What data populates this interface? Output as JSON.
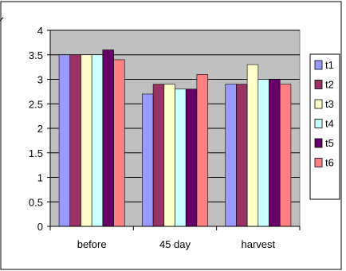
{
  "chart_data": {
    "type": "bar",
    "categories": [
      "before",
      "45 day",
      "harvest"
    ],
    "series": [
      {
        "name": "t1",
        "color": "#9999ff",
        "values": [
          3.5,
          2.7,
          2.9
        ]
      },
      {
        "name": "t2",
        "color": "#993366",
        "values": [
          3.5,
          2.9,
          2.9
        ]
      },
      {
        "name": "t3",
        "color": "#ffffcc",
        "values": [
          3.5,
          2.9,
          3.3
        ]
      },
      {
        "name": "t4",
        "color": "#ccffff",
        "values": [
          3.5,
          2.8,
          3.0
        ]
      },
      {
        "name": "t5",
        "color": "#660066",
        "values": [
          3.6,
          2.8,
          3.0
        ]
      },
      {
        "name": "t6",
        "color": "#ff8080",
        "values": [
          3.4,
          3.1,
          2.9
        ]
      }
    ],
    "yticks": [
      "0",
      "0.5",
      "1",
      "1.5",
      "2",
      "2.5",
      "3",
      "3.5",
      "4"
    ],
    "ylim": [
      0,
      4
    ],
    "grid": true,
    "plot_background": "#c0c0c0",
    "legend_position": "right"
  }
}
